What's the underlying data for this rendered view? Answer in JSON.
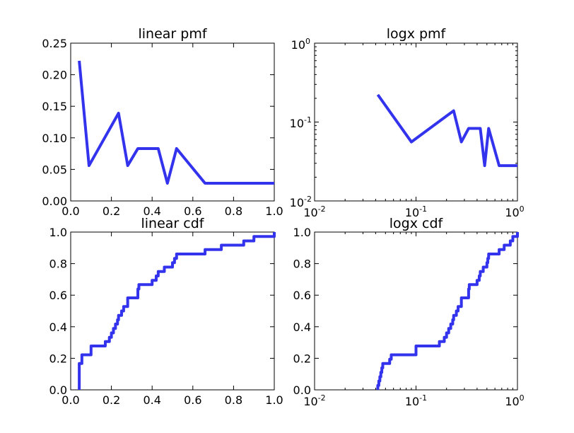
{
  "style": {
    "line_color": "#3333ee",
    "background": "#ffffff"
  },
  "chart_data": [
    {
      "type": "line",
      "title": "linear pmf",
      "xscale": "linear",
      "yscale": "linear",
      "xlim": [
        0,
        1
      ],
      "ylim": [
        0,
        0.25
      ],
      "xticks": [
        0,
        0.2,
        0.4,
        0.6,
        0.8,
        1.0
      ],
      "xticklabels": [
        "0.0",
        "0.2",
        "0.4",
        "0.6",
        "0.8",
        "1.0"
      ],
      "yticks": [
        0,
        0.05,
        0.1,
        0.15,
        0.2,
        0.25
      ],
      "yticklabels": [
        "0.00",
        "0.05",
        "0.10",
        "0.15",
        "0.20",
        "0.25"
      ],
      "grid": false,
      "x": [
        0.042,
        0.09,
        0.235,
        0.28,
        0.33,
        0.43,
        0.475,
        0.52,
        0.66,
        1.0
      ],
      "y": [
        0.222,
        0.056,
        0.139,
        0.056,
        0.083,
        0.083,
        0.028,
        0.083,
        0.028,
        0.028
      ]
    },
    {
      "type": "line",
      "title": "logx pmf",
      "xscale": "log",
      "yscale": "log",
      "xlim": [
        0.01,
        1
      ],
      "ylim": [
        0.01,
        1
      ],
      "xticks": [
        0.01,
        0.1,
        1
      ],
      "xticklabels": [
        [
          "10",
          "-2"
        ],
        [
          "10",
          "-1"
        ],
        [
          "10",
          "0"
        ]
      ],
      "yticks": [
        0.01,
        0.1,
        1
      ],
      "yticklabels": [
        [
          "10",
          "-2"
        ],
        [
          "10",
          "-1"
        ],
        [
          "10",
          "0"
        ]
      ],
      "grid": false,
      "x": [
        0.042,
        0.09,
        0.235,
        0.28,
        0.33,
        0.43,
        0.475,
        0.52,
        0.66,
        1.0
      ],
      "y": [
        0.222,
        0.056,
        0.139,
        0.056,
        0.083,
        0.083,
        0.028,
        0.083,
        0.028,
        0.028
      ]
    },
    {
      "type": "line",
      "title": "linear cdf",
      "xscale": "linear",
      "yscale": "linear",
      "xlim": [
        0,
        1
      ],
      "ylim": [
        0,
        1
      ],
      "xticks": [
        0,
        0.2,
        0.4,
        0.6,
        0.8,
        1.0
      ],
      "xticklabels": [
        "0.0",
        "0.2",
        "0.4",
        "0.6",
        "0.8",
        "1.0"
      ],
      "yticks": [
        0,
        0.2,
        0.4,
        0.6,
        0.8,
        1.0
      ],
      "yticklabels": [
        "0.0",
        "0.2",
        "0.4",
        "0.6",
        "0.8",
        "1.0"
      ],
      "grid": false,
      "steps": [
        [
          0.042,
          0.0
        ],
        [
          0.042,
          0.167
        ],
        [
          0.055,
          0.167
        ],
        [
          0.055,
          0.222
        ],
        [
          0.1,
          0.222
        ],
        [
          0.1,
          0.278
        ],
        [
          0.17,
          0.278
        ],
        [
          0.17,
          0.306
        ],
        [
          0.19,
          0.306
        ],
        [
          0.19,
          0.333
        ],
        [
          0.2,
          0.333
        ],
        [
          0.2,
          0.361
        ],
        [
          0.21,
          0.361
        ],
        [
          0.21,
          0.389
        ],
        [
          0.22,
          0.389
        ],
        [
          0.22,
          0.417
        ],
        [
          0.23,
          0.417
        ],
        [
          0.23,
          0.444
        ],
        [
          0.235,
          0.444
        ],
        [
          0.235,
          0.472
        ],
        [
          0.25,
          0.472
        ],
        [
          0.25,
          0.5
        ],
        [
          0.26,
          0.5
        ],
        [
          0.26,
          0.528
        ],
        [
          0.28,
          0.528
        ],
        [
          0.28,
          0.583
        ],
        [
          0.33,
          0.583
        ],
        [
          0.33,
          0.639
        ],
        [
          0.335,
          0.639
        ],
        [
          0.335,
          0.667
        ],
        [
          0.4,
          0.667
        ],
        [
          0.4,
          0.694
        ],
        [
          0.42,
          0.694
        ],
        [
          0.42,
          0.722
        ],
        [
          0.43,
          0.722
        ],
        [
          0.43,
          0.75
        ],
        [
          0.46,
          0.75
        ],
        [
          0.46,
          0.778
        ],
        [
          0.5,
          0.778
        ],
        [
          0.5,
          0.806
        ],
        [
          0.51,
          0.806
        ],
        [
          0.51,
          0.833
        ],
        [
          0.52,
          0.833
        ],
        [
          0.52,
          0.861
        ],
        [
          0.66,
          0.861
        ],
        [
          0.66,
          0.889
        ],
        [
          0.74,
          0.889
        ],
        [
          0.74,
          0.917
        ],
        [
          0.85,
          0.917
        ],
        [
          0.85,
          0.944
        ],
        [
          0.9,
          0.944
        ],
        [
          0.9,
          0.972
        ],
        [
          1.0,
          0.972
        ],
        [
          1.0,
          1.0
        ]
      ]
    },
    {
      "type": "line",
      "title": "logx cdf",
      "xscale": "log",
      "yscale": "linear",
      "xlim": [
        0.01,
        1
      ],
      "ylim": [
        0,
        1
      ],
      "xticks": [
        0.01,
        0.1,
        1
      ],
      "xticklabels": [
        [
          "10",
          "-2"
        ],
        [
          "10",
          "-1"
        ],
        [
          "10",
          "0"
        ]
      ],
      "yticks": [
        0,
        0.2,
        0.4,
        0.6,
        0.8,
        1.0
      ],
      "yticklabels": [
        "0.0",
        "0.2",
        "0.4",
        "0.6",
        "0.8",
        "1.0"
      ],
      "grid": false,
      "steps": [
        [
          0.042,
          0.0
        ],
        [
          0.042,
          0.028
        ],
        [
          0.043,
          0.028
        ],
        [
          0.043,
          0.056
        ],
        [
          0.044,
          0.056
        ],
        [
          0.044,
          0.083
        ],
        [
          0.045,
          0.083
        ],
        [
          0.045,
          0.111
        ],
        [
          0.046,
          0.111
        ],
        [
          0.046,
          0.139
        ],
        [
          0.047,
          0.139
        ],
        [
          0.047,
          0.167
        ],
        [
          0.055,
          0.167
        ],
        [
          0.055,
          0.194
        ],
        [
          0.057,
          0.194
        ],
        [
          0.057,
          0.222
        ],
        [
          0.1,
          0.222
        ],
        [
          0.1,
          0.278
        ],
        [
          0.17,
          0.278
        ],
        [
          0.17,
          0.306
        ],
        [
          0.19,
          0.306
        ],
        [
          0.19,
          0.333
        ],
        [
          0.2,
          0.333
        ],
        [
          0.2,
          0.361
        ],
        [
          0.21,
          0.361
        ],
        [
          0.21,
          0.389
        ],
        [
          0.22,
          0.389
        ],
        [
          0.22,
          0.417
        ],
        [
          0.23,
          0.417
        ],
        [
          0.23,
          0.444
        ],
        [
          0.235,
          0.444
        ],
        [
          0.235,
          0.472
        ],
        [
          0.25,
          0.472
        ],
        [
          0.25,
          0.5
        ],
        [
          0.26,
          0.5
        ],
        [
          0.26,
          0.528
        ],
        [
          0.28,
          0.528
        ],
        [
          0.28,
          0.583
        ],
        [
          0.33,
          0.583
        ],
        [
          0.33,
          0.639
        ],
        [
          0.335,
          0.639
        ],
        [
          0.335,
          0.667
        ],
        [
          0.4,
          0.667
        ],
        [
          0.4,
          0.694
        ],
        [
          0.42,
          0.694
        ],
        [
          0.42,
          0.722
        ],
        [
          0.43,
          0.722
        ],
        [
          0.43,
          0.75
        ],
        [
          0.46,
          0.75
        ],
        [
          0.46,
          0.778
        ],
        [
          0.5,
          0.778
        ],
        [
          0.5,
          0.806
        ],
        [
          0.51,
          0.806
        ],
        [
          0.51,
          0.833
        ],
        [
          0.52,
          0.833
        ],
        [
          0.52,
          0.861
        ],
        [
          0.66,
          0.861
        ],
        [
          0.66,
          0.889
        ],
        [
          0.74,
          0.889
        ],
        [
          0.74,
          0.917
        ],
        [
          0.85,
          0.917
        ],
        [
          0.85,
          0.944
        ],
        [
          0.9,
          0.944
        ],
        [
          0.9,
          0.972
        ],
        [
          1.0,
          0.972
        ],
        [
          1.0,
          1.0
        ]
      ]
    }
  ]
}
